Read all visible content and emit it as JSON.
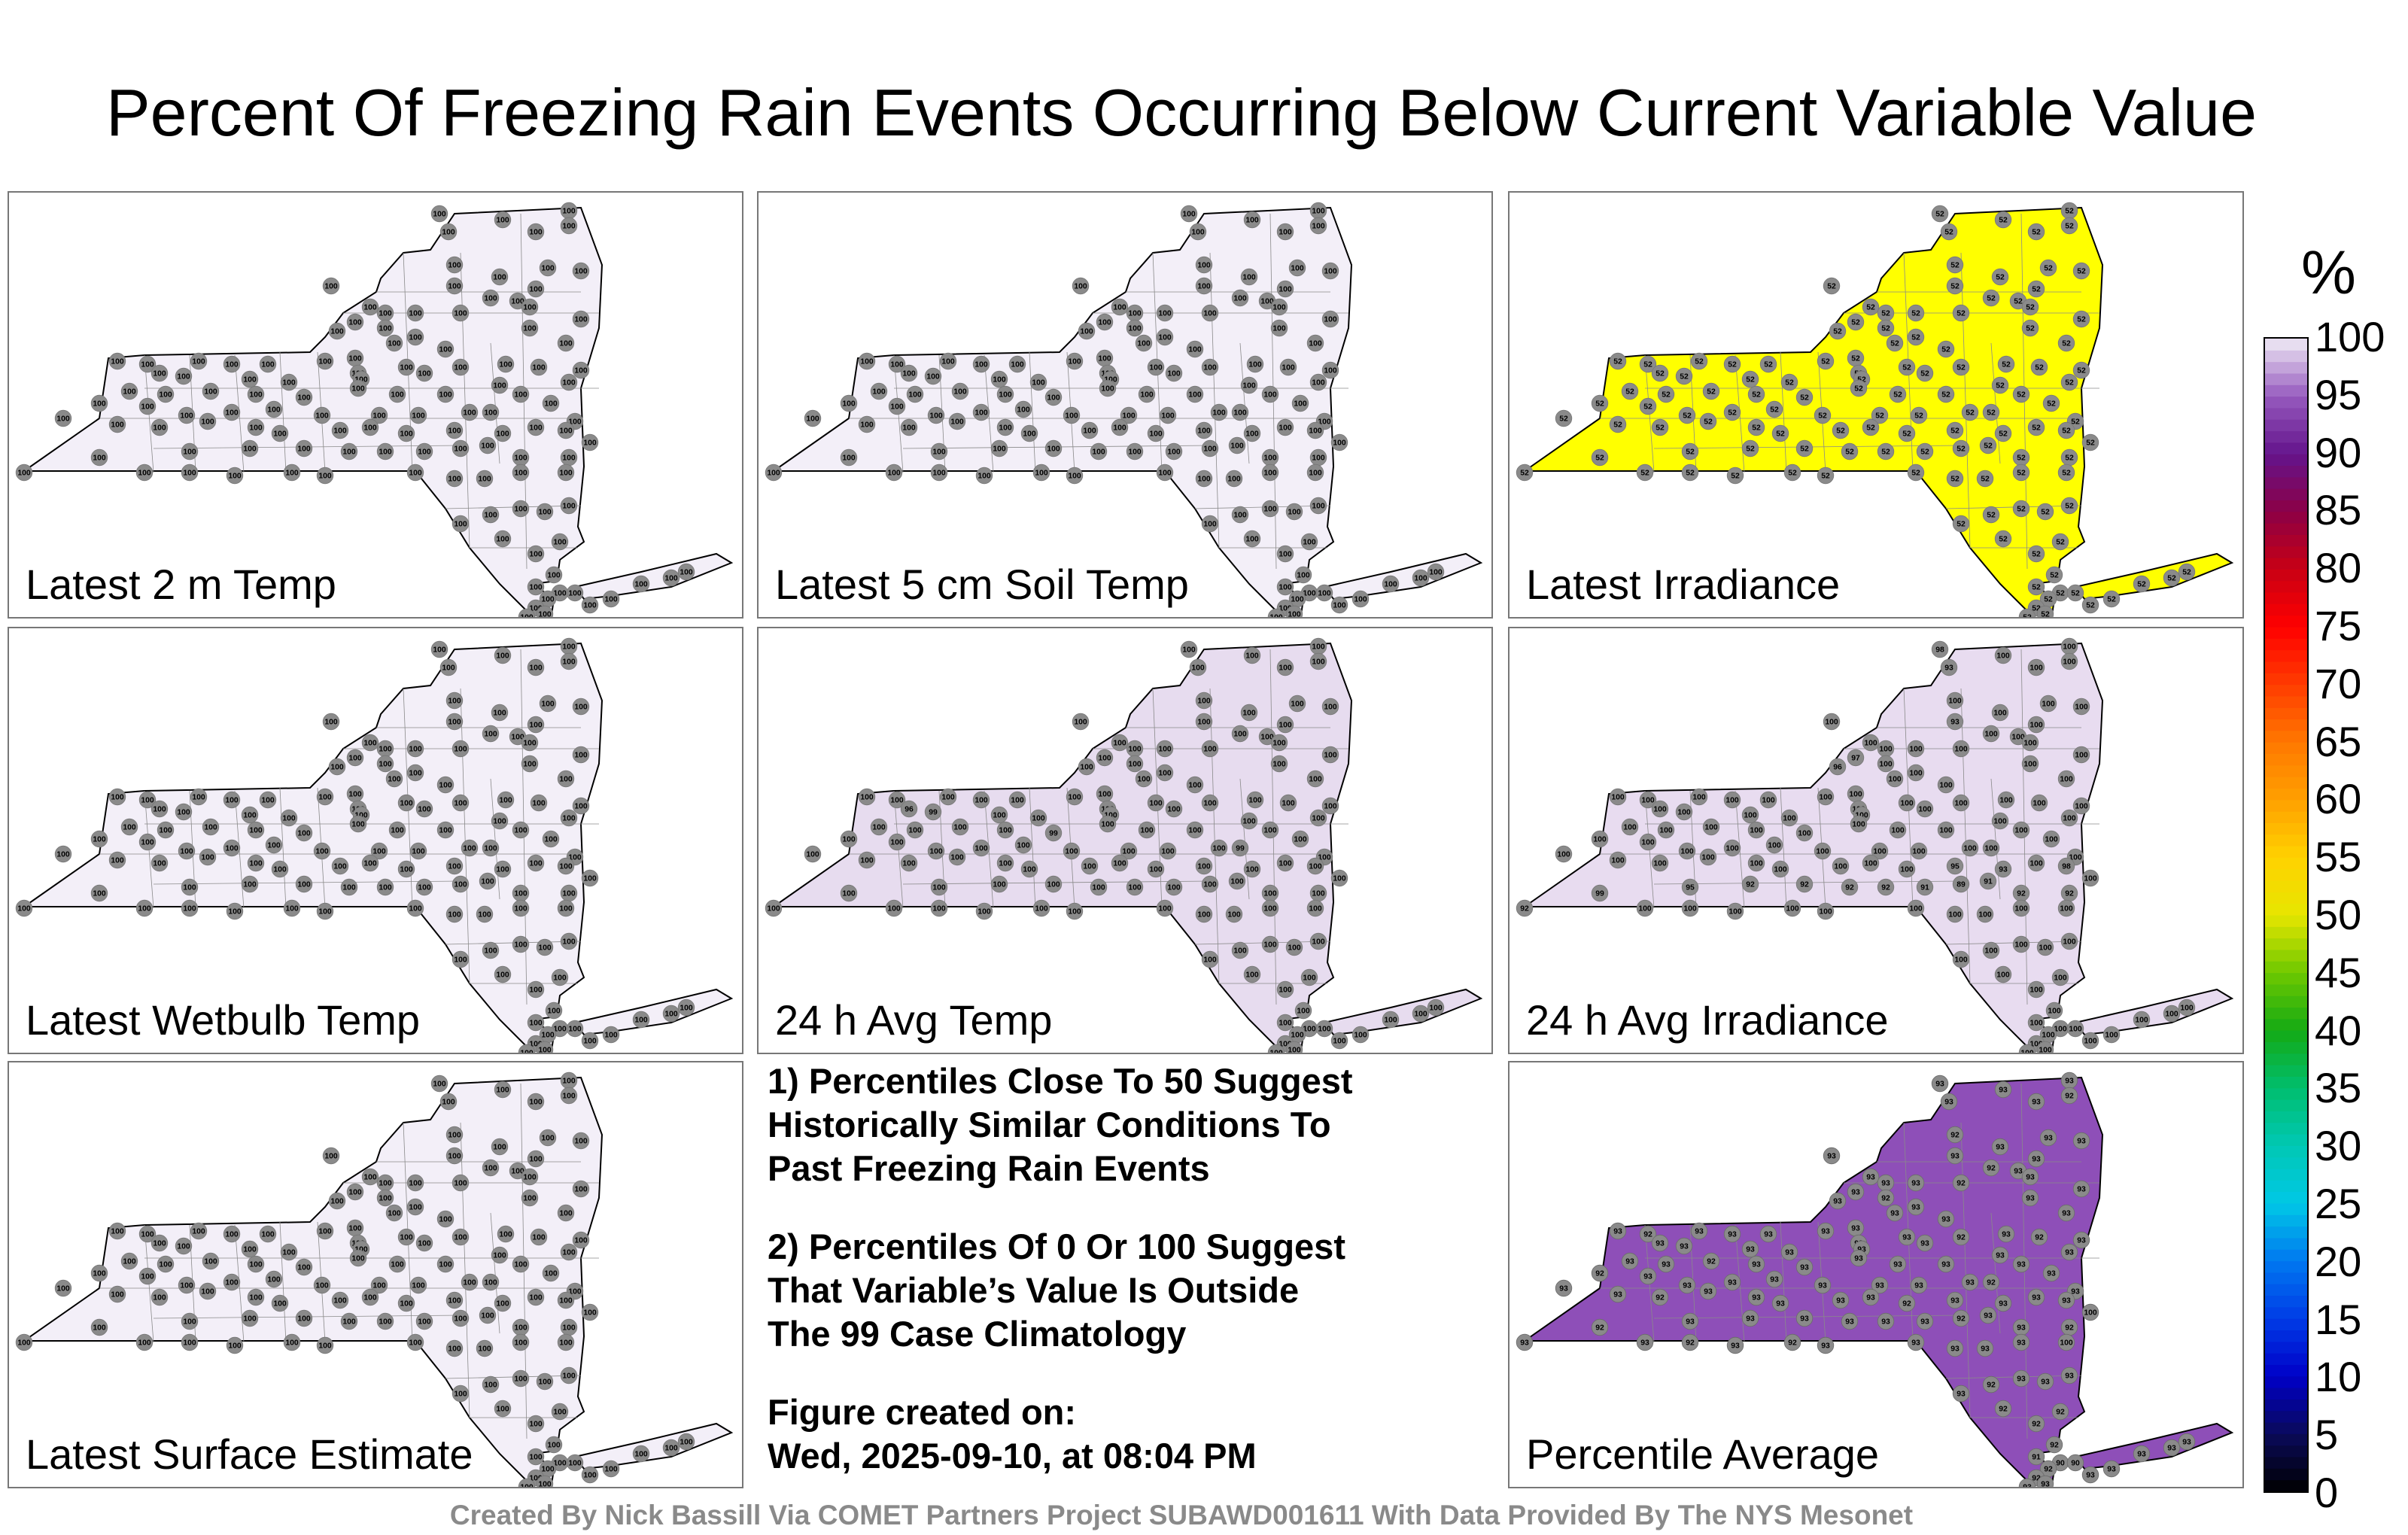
{
  "title": "Percent Of Freezing Rain Events Occurring Below Current Variable Value",
  "panels": [
    {
      "label": "Latest 2 m Temp",
      "fill": "#f3eff8",
      "station_values": [
        100,
        100,
        100,
        100,
        100,
        100,
        100,
        100,
        100,
        100,
        100,
        100,
        100,
        100,
        100,
        100,
        100,
        100,
        100,
        100,
        100,
        100,
        100,
        100,
        100,
        100,
        100,
        100,
        100,
        100,
        100,
        100,
        100,
        100,
        100,
        100,
        100,
        100,
        100,
        100,
        100,
        100,
        100,
        100,
        100,
        100,
        100,
        100,
        100,
        100,
        100,
        100,
        100,
        100,
        100,
        100,
        100,
        100,
        100,
        100,
        100,
        100,
        100,
        100,
        100,
        100,
        100,
        100,
        100,
        100,
        100,
        100,
        100,
        100,
        100,
        100,
        100,
        100,
        100,
        100,
        100,
        100,
        100,
        100,
        100,
        100,
        100,
        100,
        100,
        100,
        100,
        100,
        100,
        100,
        100,
        100,
        100,
        100,
        100,
        100,
        100,
        100,
        100,
        100,
        100,
        100,
        100,
        100,
        100,
        100,
        100,
        100,
        100,
        100,
        100,
        100,
        100,
        100,
        100,
        100,
        100,
        100,
        100,
        100,
        100,
        100,
        100,
        100
      ]
    },
    {
      "label": "Latest 5 cm Soil Temp",
      "fill": "#f3eff8",
      "station_values": [
        100,
        100,
        100,
        100,
        100,
        100,
        100,
        100,
        100,
        100,
        100,
        100,
        100,
        100,
        100,
        100,
        100,
        100,
        100,
        100,
        100,
        100,
        100,
        100,
        100,
        100,
        100,
        100,
        100,
        100,
        100,
        100,
        100,
        100,
        100,
        100,
        100,
        100,
        100,
        100,
        100,
        100,
        100,
        100,
        100,
        100,
        100,
        100,
        100,
        100,
        100,
        100,
        100,
        100,
        100,
        100,
        100,
        100,
        100,
        100,
        100,
        100,
        100,
        100,
        100,
        100,
        100,
        100,
        100,
        100,
        100,
        100,
        100,
        100,
        100,
        100,
        100,
        100,
        100,
        100,
        100,
        100,
        100,
        100,
        100,
        100,
        100,
        100,
        100,
        100,
        100,
        100,
        100,
        100,
        100,
        100,
        100,
        100,
        100,
        100,
        100,
        100,
        100,
        100,
        100,
        100,
        100,
        100,
        100,
        100,
        100,
        100,
        100,
        100,
        100,
        100,
        100,
        100,
        100,
        100,
        100,
        100,
        100,
        100,
        100,
        100,
        100,
        100
      ]
    },
    {
      "label": "Latest Irradiance",
      "fill": "#ffff00",
      "station_values": [
        52,
        52,
        52,
        52,
        52,
        52,
        52,
        52,
        52,
        52,
        52,
        52,
        52,
        52,
        52,
        52,
        52,
        52,
        52,
        52,
        52,
        52,
        52,
        52,
        52,
        52,
        52,
        52,
        52,
        52,
        52,
        52,
        52,
        52,
        52,
        52,
        52,
        52,
        52,
        52,
        52,
        52,
        52,
        52,
        52,
        52,
        52,
        52,
        52,
        52,
        52,
        52,
        52,
        52,
        52,
        52,
        52,
        52,
        52,
        52,
        52,
        52,
        52,
        52,
        52,
        52,
        52,
        52,
        52,
        52,
        52,
        52,
        52,
        52,
        52,
        52,
        52,
        52,
        52,
        52,
        52,
        52,
        52,
        52,
        52,
        52,
        52,
        52,
        52,
        52,
        52,
        52,
        52,
        52,
        52,
        52,
        52,
        52,
        52,
        52,
        52,
        52,
        52,
        52,
        52,
        52,
        52,
        52,
        52,
        52,
        52,
        52,
        52,
        52,
        52,
        52,
        52,
        52,
        52,
        52,
        52,
        52,
        52,
        52,
        52,
        52,
        52,
        52
      ]
    },
    {
      "label": "Latest Wetbulb Temp",
      "fill": "#f3eff8",
      "station_values": [
        100,
        100,
        100,
        100,
        100,
        100,
        100,
        100,
        100,
        100,
        100,
        100,
        100,
        100,
        100,
        100,
        100,
        100,
        100,
        100,
        100,
        100,
        100,
        100,
        100,
        100,
        100,
        100,
        100,
        100,
        100,
        100,
        100,
        100,
        100,
        100,
        100,
        100,
        100,
        100,
        100,
        100,
        100,
        100,
        100,
        100,
        100,
        100,
        100,
        100,
        100,
        100,
        100,
        100,
        100,
        100,
        100,
        100,
        100,
        100,
        100,
        100,
        100,
        100,
        100,
        100,
        100,
        100,
        100,
        100,
        100,
        100,
        100,
        100,
        100,
        100,
        100,
        100,
        100,
        100,
        100,
        100,
        100,
        100,
        100,
        100,
        100,
        100,
        100,
        100,
        100,
        100,
        100,
        100,
        100,
        100,
        100,
        100,
        100,
        100,
        100,
        100,
        100,
        100,
        100,
        100,
        100,
        100,
        100,
        100,
        100,
        100,
        100,
        100,
        100,
        100,
        100,
        100,
        100,
        100,
        100,
        100,
        100,
        100,
        100,
        100,
        100,
        100
      ]
    },
    {
      "label": "24 h Avg Temp",
      "fill": "#e7dcef",
      "station_values": [
        100,
        100,
        100,
        100,
        100,
        100,
        100,
        100,
        100,
        100,
        100,
        100,
        100,
        100,
        100,
        100,
        100,
        100,
        100,
        100,
        100,
        100,
        100,
        100,
        100,
        100,
        100,
        100,
        100,
        100,
        100,
        100,
        100,
        100,
        100,
        100,
        100,
        100,
        100,
        100,
        96,
        99,
        100,
        100,
        100,
        100,
        100,
        100,
        100,
        100,
        100,
        100,
        100,
        100,
        99,
        100,
        100,
        100,
        100,
        100,
        100,
        100,
        100,
        100,
        100,
        100,
        100,
        100,
        100,
        100,
        99,
        100,
        100,
        100,
        100,
        100,
        100,
        100,
        100,
        100,
        100,
        100,
        100,
        100,
        100,
        100,
        100,
        100,
        100,
        100,
        100,
        100,
        100,
        100,
        100,
        100,
        100,
        100,
        100,
        100,
        100,
        100,
        100,
        100,
        100,
        100,
        100,
        100,
        100,
        100,
        100,
        100,
        100,
        100,
        100,
        100,
        100,
        100,
        100,
        100,
        100,
        100,
        100,
        100,
        100,
        100,
        100,
        100
      ]
    },
    {
      "label": "24 h Avg Irradiance",
      "fill": "#e8dcf0",
      "station_values": [
        98,
        100,
        100,
        100,
        100,
        93,
        100,
        100,
        100,
        100,
        100,
        93,
        100,
        100,
        100,
        100,
        100,
        100,
        100,
        100,
        100,
        97,
        100,
        96,
        100,
        100,
        100,
        100,
        100,
        100,
        100,
        100,
        100,
        100,
        100,
        100,
        100,
        100,
        100,
        100,
        100,
        100,
        100,
        100,
        100,
        100,
        100,
        100,
        100,
        100,
        100,
        100,
        100,
        100,
        100,
        100,
        100,
        100,
        100,
        100,
        100,
        100,
        100,
        100,
        100,
        100,
        100,
        100,
        100,
        100,
        100,
        100,
        100,
        100,
        100,
        100,
        100,
        100,
        100,
        100,
        100,
        95,
        93,
        98,
        92,
        99,
        95,
        92,
        92,
        92,
        92,
        91,
        89,
        91,
        92,
        92,
        100,
        100,
        100,
        100,
        100,
        100,
        100,
        100,
        100,
        100,
        100,
        100,
        100,
        100,
        100,
        100,
        100,
        100,
        100,
        100,
        100,
        100,
        100,
        100,
        100,
        100,
        100,
        100,
        100,
        100,
        100,
        100
      ]
    },
    {
      "label": "Latest Surface Estimate",
      "fill": "#f3eff8",
      "station_values": [
        100,
        100,
        100,
        100,
        100,
        100,
        100,
        100,
        100,
        100,
        100,
        100,
        100,
        100,
        100,
        100,
        100,
        100,
        100,
        100,
        100,
        100,
        100,
        100,
        100,
        100,
        100,
        100,
        100,
        100,
        100,
        100,
        100,
        100,
        100,
        100,
        100,
        100,
        100,
        100,
        100,
        100,
        100,
        100,
        100,
        100,
        100,
        100,
        100,
        100,
        100,
        100,
        100,
        100,
        100,
        100,
        100,
        100,
        100,
        100,
        100,
        100,
        100,
        100,
        100,
        100,
        100,
        100,
        100,
        100,
        100,
        100,
        100,
        100,
        100,
        100,
        100,
        100,
        100,
        100,
        100,
        100,
        100,
        100,
        100,
        100,
        100,
        100,
        100,
        100,
        100,
        100,
        100,
        100,
        100,
        100,
        100,
        100,
        100,
        100,
        100,
        100,
        100,
        100,
        100,
        100,
        100,
        100,
        100,
        100,
        100,
        100,
        100,
        100,
        100,
        100,
        100,
        100,
        100,
        100,
        100,
        100,
        100,
        100,
        100,
        100,
        100,
        100
      ]
    },
    {
      "label": "Percentile Average",
      "fill": "#8e4fb8",
      "station_values": [
        93,
        93,
        92,
        93,
        93,
        93,
        93,
        92,
        93,
        93,
        93,
        93,
        93,
        92,
        93,
        93,
        93,
        93,
        93,
        92,
        93,
        93,
        92,
        93,
        93,
        93,
        93,
        93,
        93,
        93,
        92,
        93,
        93,
        93,
        93,
        93,
        93,
        93,
        93,
        92,
        93,
        93,
        93,
        93,
        93,
        93,
        92,
        93,
        93,
        93,
        93,
        93,
        92,
        93,
        93,
        93,
        93,
        93,
        93,
        93,
        93,
        93,
        92,
        93,
        93,
        93,
        93,
        93,
        93,
        93,
        92,
        93,
        93,
        93,
        92,
        93,
        93,
        93,
        93,
        93,
        92,
        93,
        93,
        93,
        93,
        92,
        93,
        93,
        93,
        93,
        93,
        93,
        92,
        93,
        93,
        92,
        100,
        100,
        93,
        93,
        93,
        93,
        93,
        92,
        93,
        92,
        93,
        93,
        92,
        93,
        93,
        93,
        92,
        92,
        92,
        92,
        91,
        90,
        90,
        92,
        92,
        93,
        93,
        93,
        93,
        93,
        93,
        93
      ]
    }
  ],
  "notes": {
    "note1": "1) Percentiles Close To 50 Suggest\nHistorically Similar Conditions To\nPast Freezing Rain Events",
    "note2": "2) Percentiles Of 0 Or 100 Suggest\nThat Variable’s Value Is Outside\nThe 99 Case Climatology",
    "created": "Figure created on:\nWed, 2025-09-10, at 08:04 PM"
  },
  "colorbar": {
    "unit": "%",
    "ticks": [
      "100",
      "95",
      "90",
      "85",
      "80",
      "75",
      "70",
      "65",
      "60",
      "55",
      "50",
      "45",
      "40",
      "35",
      "30",
      "25",
      "20",
      "15",
      "10",
      "5",
      "0"
    ]
  },
  "footer": "Created By Nick Bassill Via COMET Partners Project SUBAWD001611 With Data Provided By The NYS Mesonet",
  "chart_data": {
    "type": "heatmap",
    "title": "Percent Of Freezing Rain Events Occurring Below Current Variable Value",
    "panels": [
      "Latest 2 m Temp",
      "Latest 5 cm Soil Temp",
      "Latest Irradiance",
      "Latest Wetbulb Temp",
      "24 h Avg Temp",
      "24 h Avg Irradiance",
      "Latest Surface Estimate",
      "Percentile Average"
    ],
    "typical_value": [
      100,
      100,
      52,
      100,
      100,
      100,
      100,
      93
    ],
    "colorbar_range": [
      0,
      100
    ],
    "colorbar_unit": "%",
    "colorbar_step": 5
  }
}
